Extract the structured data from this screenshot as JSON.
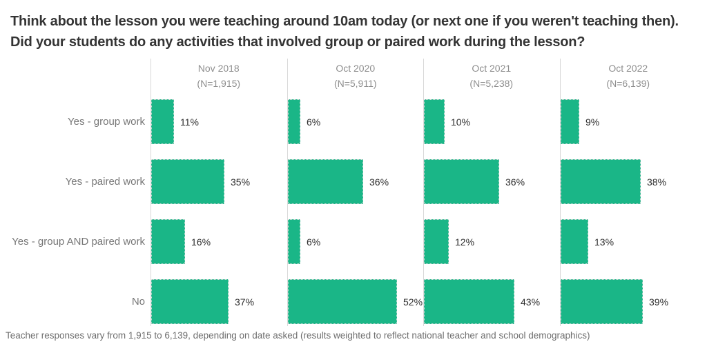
{
  "title": "Think about the lesson you were teaching around 10am today (or next one if you weren't teaching then). Did your students do any activities that involved group or paired work during the lesson?",
  "footnote": "Teacher responses vary from 1,915 to 6,139, depending on date asked (results weighted to reflect national teacher and school demographics)",
  "colors": {
    "bar": "#1ab687",
    "axis_line": "#d8d8d8",
    "title_text": "#343434",
    "header_text": "#8e8e8e",
    "label_text": "#767676",
    "value_text": "#2d2d2d",
    "footnote_text": "#6e6e6e",
    "background": "#ffffff"
  },
  "chart_data": {
    "type": "bar",
    "orientation": "horizontal",
    "title": "Think about the lesson you were teaching around 10am today (or next one if you weren't teaching then). Did your students do any activities that involved group or paired work during the lesson?",
    "categories": [
      "Yes - group work",
      "Yes - paired work",
      "Yes - group AND paired work",
      "No"
    ],
    "series": [
      {
        "name": "Nov 2018",
        "n_label": "(N=1,915)",
        "values": [
          11,
          35,
          16,
          37
        ]
      },
      {
        "name": "Oct 2020",
        "n_label": "(N=5,911)",
        "values": [
          6,
          36,
          6,
          52
        ]
      },
      {
        "name": "Oct 2021",
        "n_label": "(N=5,238)",
        "values": [
          10,
          36,
          12,
          43
        ]
      },
      {
        "name": "Oct 2022",
        "n_label": "(N=6,139)",
        "values": [
          9,
          38,
          13,
          39
        ]
      }
    ],
    "value_suffix": "%",
    "xlim": [
      0,
      60
    ],
    "grid": "vertical-axis-line-per-panel-only",
    "legend_position": "none",
    "layout": "small-multiples-four-panels"
  }
}
